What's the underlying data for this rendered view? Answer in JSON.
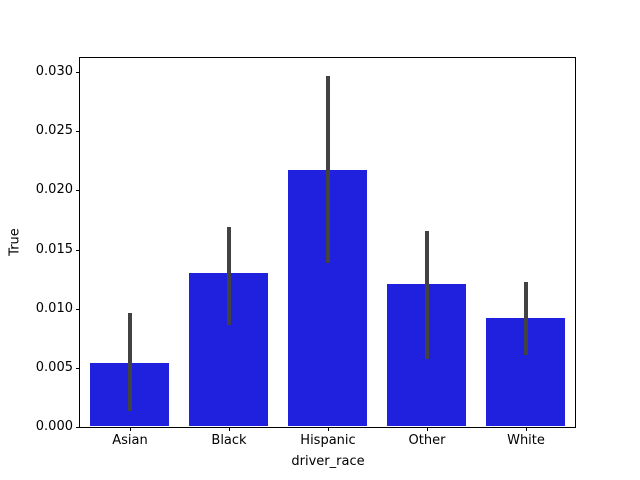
{
  "figure": {
    "background": "#ffffff"
  },
  "chart_data": {
    "type": "bar",
    "title": "",
    "xlabel": "driver_race",
    "ylabel": "True",
    "categories": [
      "Asian",
      "Black",
      "Hispanic",
      "Other",
      "White"
    ],
    "values": [
      0.0054,
      0.013,
      0.0217,
      0.0121,
      0.0092
    ],
    "error_bars": [
      {
        "low": 0.0013,
        "high": 0.0096
      },
      {
        "low": 0.0086,
        "high": 0.0169
      },
      {
        "low": 0.0139,
        "high": 0.0297
      },
      {
        "low": 0.0058,
        "high": 0.0166
      },
      {
        "low": 0.0061,
        "high": 0.0123
      }
    ],
    "ylim": [
      0,
      0.0312
    ],
    "yticks": [
      0.0,
      0.005,
      0.01,
      0.015,
      0.02,
      0.025,
      0.03
    ],
    "ytick_labels": [
      "0.000",
      "0.005",
      "0.010",
      "0.015",
      "0.020",
      "0.025",
      "0.030"
    ],
    "bar_color": "#2020df",
    "error_bar_color": "#424242",
    "spine_color": "#000000",
    "bar_width_fraction": 0.8,
    "grid": false,
    "legend": null
  }
}
